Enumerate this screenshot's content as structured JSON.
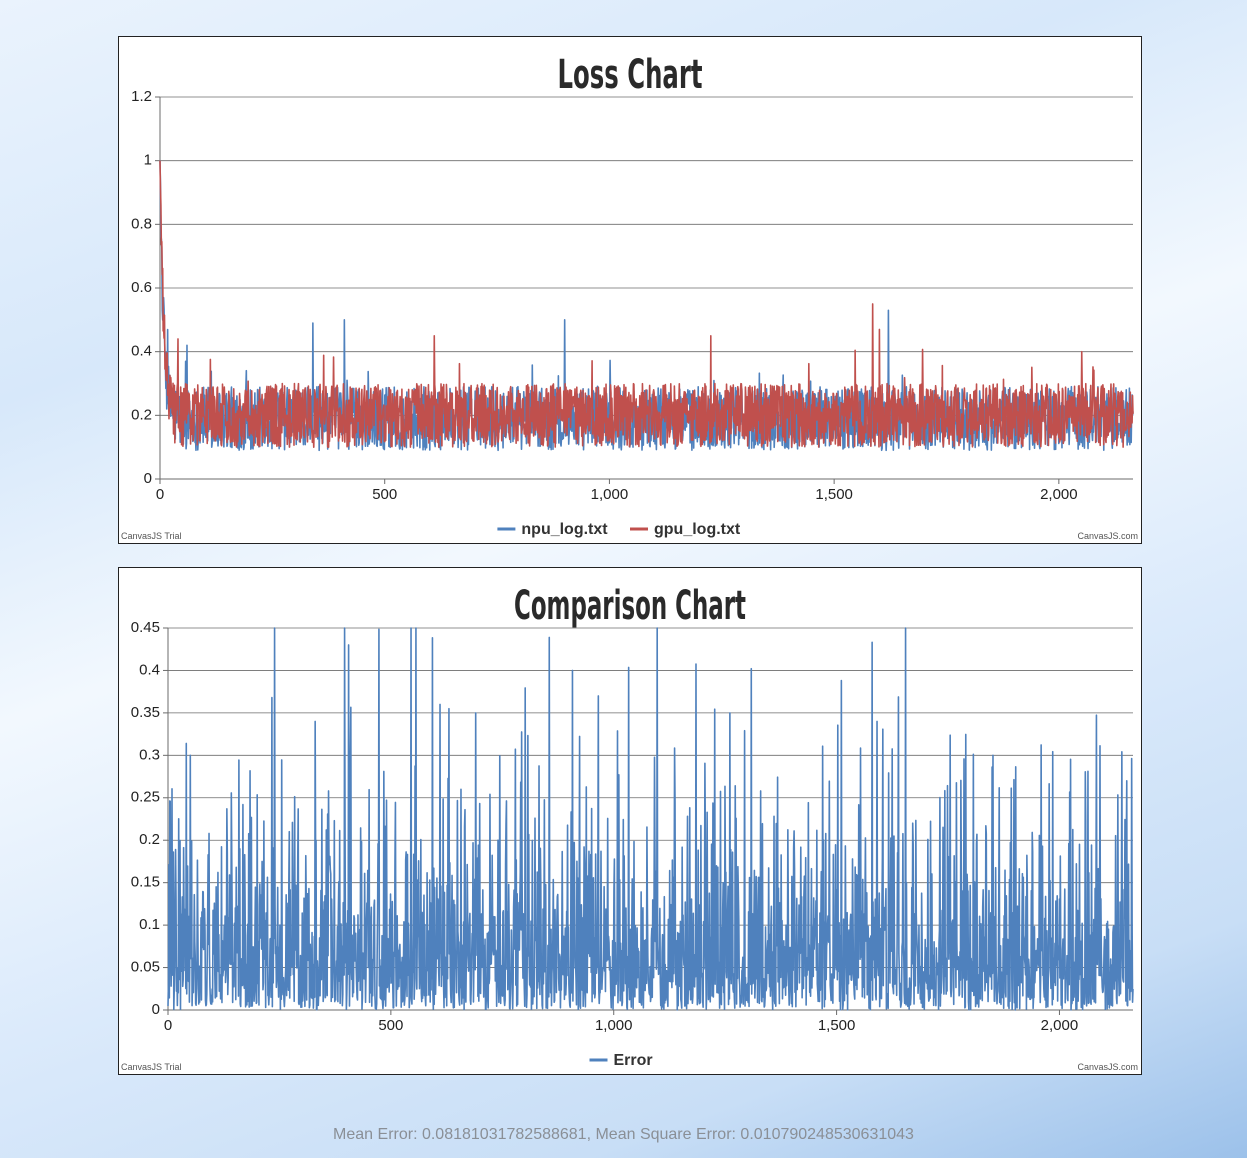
{
  "charts": [
    {
      "id": "loss",
      "type": "line",
      "title": "Loss Chart",
      "xlim": [
        0,
        2165
      ],
      "ylim": [
        0,
        1.2
      ],
      "x_ticks": [
        0,
        500,
        1000,
        1500,
        2000
      ],
      "x_tick_labels": [
        "0",
        "500",
        "1,000",
        "1,500",
        "2,000"
      ],
      "y_ticks": [
        0,
        0.2,
        0.4,
        0.6,
        0.8,
        1,
        1.2
      ],
      "y_tick_labels": [
        "0",
        "0.2",
        "0.4",
        "0.6",
        "0.8",
        "1",
        "1.2"
      ],
      "grid": true,
      "legend_position": "bottom-center",
      "credit_left": "CanvasJS Trial",
      "credit_right": "CanvasJS.com",
      "series": [
        {
          "name": "npu_log.txt",
          "color": "#4f81bd",
          "n_points": 2165,
          "start": 1.0,
          "decay_to": 0.19,
          "noise_amp": 0.1,
          "min": 0.02,
          "spikes": [
            [
              5,
              0.53
            ],
            [
              60,
              0.42
            ],
            [
              340,
              0.49
            ],
            [
              410,
              0.5
            ],
            [
              900,
              0.5
            ],
            [
              1620,
              0.53
            ]
          ]
        },
        {
          "name": "gpu_log.txt",
          "color": "#c0504d",
          "n_points": 2165,
          "start": 1.0,
          "decay_to": 0.2,
          "noise_amp": 0.1,
          "min": 0.02,
          "spikes": [
            [
              40,
              0.44
            ],
            [
              610,
              0.45
            ],
            [
              1225,
              0.45
            ],
            [
              1585,
              0.55
            ],
            [
              1600,
              0.47
            ],
            [
              2050,
              0.4
            ]
          ]
        }
      ]
    },
    {
      "id": "comparison",
      "type": "line",
      "title": "Comparison Chart",
      "xlim": [
        0,
        2165
      ],
      "ylim": [
        0,
        0.45
      ],
      "x_ticks": [
        0,
        500,
        1000,
        1500,
        2000
      ],
      "x_tick_labels": [
        "0",
        "500",
        "1,000",
        "1,500",
        "2,000"
      ],
      "y_ticks": [
        0,
        0.05,
        0.1,
        0.15,
        0.2,
        0.25,
        0.3,
        0.35,
        0.4,
        0.45
      ],
      "y_tick_labels": [
        "0",
        "0.05",
        "0.1",
        "0.15",
        "0.2",
        "0.25",
        "0.3",
        "0.35",
        "0.4",
        "0.45"
      ],
      "grid": true,
      "legend_position": "bottom-center",
      "credit_left": "CanvasJS Trial",
      "credit_right": "CanvasJS.com",
      "series": [
        {
          "name": "Error",
          "color": "#4f81bd",
          "n_points": 2165,
          "mean": 0.0818,
          "min": 0.0,
          "spikes": [
            [
              50,
              0.3
            ],
            [
              330,
              0.34
            ],
            [
              405,
              0.43
            ],
            [
              610,
              0.36
            ],
            [
              690,
              0.35
            ],
            [
              965,
              0.37
            ],
            [
              1260,
              0.35
            ],
            [
              1590,
              0.34
            ],
            [
              1850,
              0.3
            ],
            [
              2150,
              0.27
            ]
          ]
        }
      ]
    }
  ],
  "footer": {
    "text": "Mean Error: 0.08181031782588681, Mean Square Error: 0.010790248530631043"
  }
}
